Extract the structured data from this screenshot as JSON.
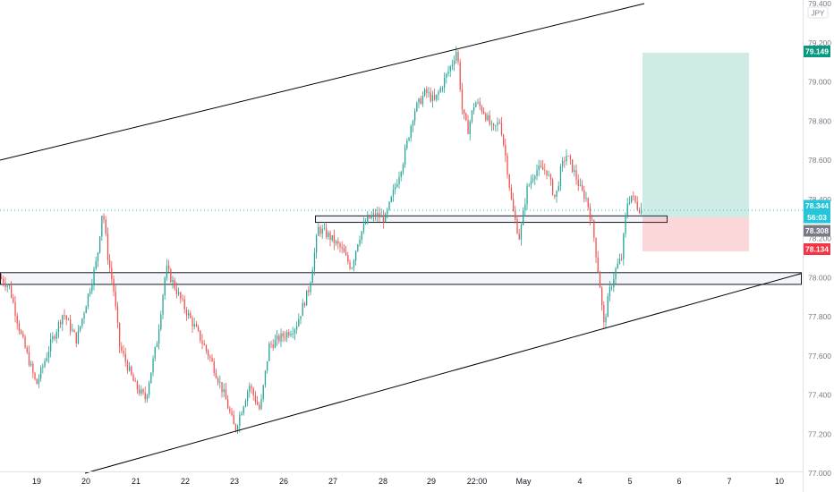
{
  "currency_label": "JPY",
  "chart_data": {
    "type": "candlestick",
    "ylim": [
      77.0,
      79.4
    ],
    "y_ticks": [
      "79.400",
      "79.200",
      "79.000",
      "78.800",
      "78.600",
      "78.400",
      "78.200",
      "78.000",
      "77.800",
      "77.600",
      "77.400",
      "77.200",
      "77.000"
    ],
    "x_ticks": [
      "19",
      "20",
      "21",
      "22",
      "23",
      "26",
      "27",
      "28",
      "29",
      "22:00",
      "May",
      "4",
      "5",
      "6",
      "7",
      "10"
    ],
    "colors": {
      "up": "#26a69a",
      "down": "#ef5350",
      "line": "#000000"
    },
    "price_tags": [
      {
        "label": "79.149",
        "value": 79.149,
        "color": "#089981"
      },
      {
        "label": "78.344",
        "value": 78.344,
        "color": "#26c6da"
      },
      {
        "label": "56:03",
        "value": 78.295,
        "color": "#26c6da"
      },
      {
        "label": "78.308",
        "value": 78.308,
        "color": "#787b86"
      },
      {
        "label": "78.134",
        "value": 78.134,
        "color": "#f23645"
      }
    ],
    "current_price": 78.344,
    "position": {
      "entry": 78.308,
      "target": 79.149,
      "stop": 78.134
    },
    "zones": [
      {
        "name": "support-zone-upper",
        "low": 78.282,
        "high": 78.315
      },
      {
        "name": "support-zone-lower",
        "low": 77.965,
        "high": 78.025
      }
    ],
    "channel": [
      {
        "name": "channel-upper-line",
        "p1": [
          0,
          78.6
        ],
        "p2": [
          720,
          79.4
        ]
      },
      {
        "name": "channel-lower-line",
        "p1": [
          95,
          77.0
        ],
        "p2": [
          895,
          78.02
        ]
      }
    ],
    "waypoints": [
      [
        0,
        78.0
      ],
      [
        10,
        77.95
      ],
      [
        22,
        77.72
      ],
      [
        40,
        77.45
      ],
      [
        55,
        77.65
      ],
      [
        70,
        77.82
      ],
      [
        85,
        77.68
      ],
      [
        100,
        77.95
      ],
      [
        108,
        78.1
      ],
      [
        114,
        78.36
      ],
      [
        120,
        78.1
      ],
      [
        126,
        77.95
      ],
      [
        133,
        77.65
      ],
      [
        150,
        77.45
      ],
      [
        162,
        77.38
      ],
      [
        175,
        77.68
      ],
      [
        185,
        78.05
      ],
      [
        195,
        77.95
      ],
      [
        205,
        77.85
      ],
      [
        220,
        77.72
      ],
      [
        235,
        77.58
      ],
      [
        250,
        77.4
      ],
      [
        262,
        77.22
      ],
      [
        278,
        77.45
      ],
      [
        290,
        77.32
      ],
      [
        300,
        77.65
      ],
      [
        315,
        77.7
      ],
      [
        330,
        77.75
      ],
      [
        345,
        77.95
      ],
      [
        355,
        78.25
      ],
      [
        365,
        78.22
      ],
      [
        380,
        78.15
      ],
      [
        392,
        78.05
      ],
      [
        400,
        78.2
      ],
      [
        410,
        78.3
      ],
      [
        420,
        78.32
      ],
      [
        430,
        78.3
      ],
      [
        440,
        78.45
      ],
      [
        450,
        78.6
      ],
      [
        462,
        78.85
      ],
      [
        475,
        78.95
      ],
      [
        485,
        78.9
      ],
      [
        495,
        79.0
      ],
      [
        505,
        79.1
      ],
      [
        510,
        79.17
      ],
      [
        516,
        78.85
      ],
      [
        522,
        78.75
      ],
      [
        530,
        78.9
      ],
      [
        540,
        78.85
      ],
      [
        550,
        78.75
      ],
      [
        558,
        78.8
      ],
      [
        565,
        78.6
      ],
      [
        572,
        78.35
      ],
      [
        580,
        78.2
      ],
      [
        588,
        78.45
      ],
      [
        598,
        78.55
      ],
      [
        610,
        78.55
      ],
      [
        620,
        78.4
      ],
      [
        626,
        78.55
      ],
      [
        632,
        78.63
      ],
      [
        640,
        78.55
      ],
      [
        648,
        78.45
      ],
      [
        655,
        78.4
      ],
      [
        662,
        78.25
      ],
      [
        670,
        77.95
      ],
      [
        674,
        77.75
      ],
      [
        680,
        77.92
      ],
      [
        688,
        78.05
      ],
      [
        694,
        78.1
      ],
      [
        700,
        78.38
      ],
      [
        705,
        78.42
      ],
      [
        712,
        78.36
      ],
      [
        718,
        78.34
      ]
    ]
  }
}
